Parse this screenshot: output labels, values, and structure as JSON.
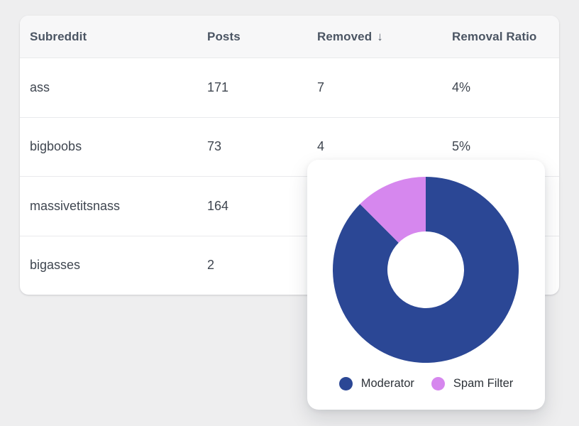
{
  "table": {
    "columns": [
      {
        "label": "Subreddit"
      },
      {
        "label": "Posts"
      },
      {
        "label": "Removed",
        "sorted": "desc",
        "sort_indicator": "↓"
      },
      {
        "label": "Removal Ratio"
      }
    ],
    "rows": [
      {
        "subreddit": "ass",
        "posts": "171",
        "removed": "7",
        "removal_ratio": "4%"
      },
      {
        "subreddit": "bigboobs",
        "posts": "73",
        "removed": "4",
        "removal_ratio": "5%"
      },
      {
        "subreddit": "massivetitsnass",
        "posts": "164",
        "removed": "",
        "removal_ratio": ""
      },
      {
        "subreddit": "bigasses",
        "posts": "2",
        "removed": "",
        "removal_ratio": ""
      }
    ]
  },
  "chart_data": {
    "type": "pie",
    "variant": "donut",
    "series": [
      {
        "name": "Moderator",
        "value_percent": 87.5,
        "color": "#2b4795"
      },
      {
        "name": "Spam Filter",
        "value_percent": 12.5,
        "color": "#d687ee"
      }
    ],
    "start_angle_deg": 0,
    "direction": "clockwise",
    "inner_radius_ratio": 0.41,
    "legend_position": "bottom"
  },
  "colors": {
    "page_bg": "#eeeeef",
    "card_bg": "#ffffff",
    "header_bg": "#f7f7f8",
    "divider": "#e9eaec",
    "header_text": "#4b5563",
    "cell_text": "#3f4650",
    "legend_text": "#2d3238",
    "moderator_blue": "#2b4795",
    "spam_filter_purple": "#d687ee"
  }
}
